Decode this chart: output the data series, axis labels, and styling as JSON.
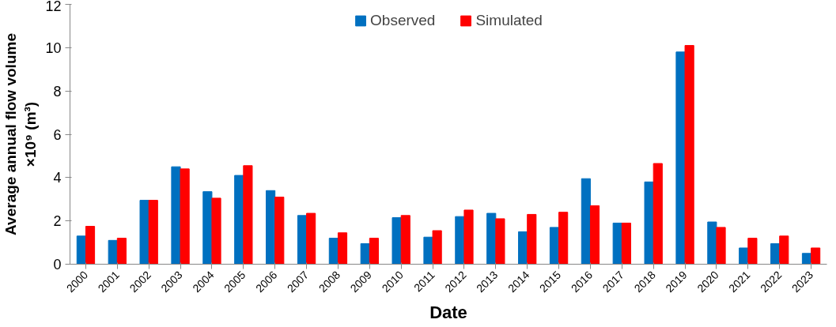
{
  "chart_data": {
    "type": "bar",
    "xlabel": "Date",
    "ylabel": "Average annual flow volume\n×10⁹ (m³)",
    "categories": [
      "2000",
      "2001",
      "2002",
      "2003",
      "2004",
      "2005",
      "2006",
      "2007",
      "2008",
      "2009",
      "2010",
      "2011",
      "2012",
      "2013",
      "2014",
      "2015",
      "2016",
      "2017",
      "2018",
      "2019",
      "2020",
      "2021",
      "2022",
      "2023"
    ],
    "series": [
      {
        "name": "Observed",
        "color": "#0070c0",
        "values": [
          1.3,
          1.1,
          2.95,
          4.5,
          3.35,
          4.1,
          3.4,
          2.25,
          1.2,
          0.95,
          2.15,
          1.25,
          2.2,
          2.35,
          1.5,
          1.7,
          3.95,
          1.9,
          3.8,
          9.8,
          1.95,
          0.75,
          0.95,
          0.5
        ]
      },
      {
        "name": "Simulated",
        "color": "#ff0000",
        "values": [
          1.75,
          1.2,
          2.95,
          4.4,
          3.05,
          4.55,
          3.1,
          2.35,
          1.45,
          1.2,
          2.25,
          1.55,
          2.5,
          2.1,
          2.3,
          2.4,
          2.7,
          1.9,
          4.65,
          10.1,
          1.7,
          1.2,
          1.3,
          0.75
        ]
      }
    ],
    "ylim": [
      0,
      12
    ],
    "yticks": [
      0,
      2,
      4,
      6,
      8,
      10,
      12
    ],
    "grid": false,
    "legend": "top"
  }
}
